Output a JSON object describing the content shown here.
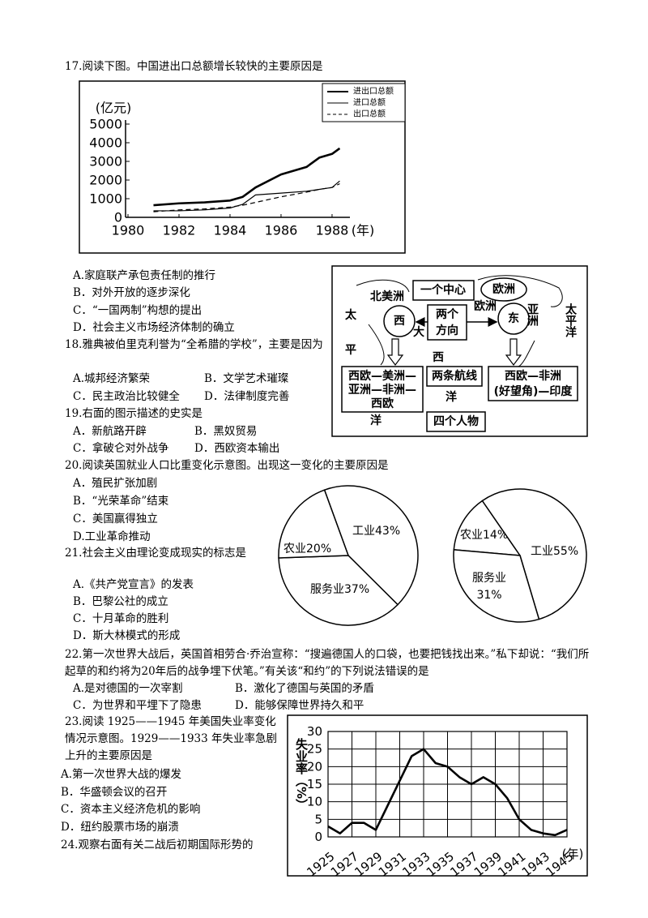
{
  "questions": [
    {
      "stem": "17.阅读下图。中国进出口总额增长较快的主要原因是",
      "options": [
        "A.家庭联产承包责任制的推行",
        "B．对外开放的逐步深化",
        "C．“一国两制”构想的提出",
        "D．社会主义市场经济体制的确立"
      ]
    },
    {
      "stem": "18.雅典被伯里克利誉为“全希腊的学校”，主要是因为",
      "options": [
        "A.城邦经济繁荣",
        "B．文学艺术璀璨",
        "C．民主政治比较健全",
        "D．法律制度完善"
      ]
    },
    {
      "stem": "19.右面的图示描述的史实是",
      "options": [
        "A．新航路开辟",
        "B．黑奴贸易",
        "C．拿破仑对外战争",
        "D．西欧资本输出"
      ]
    },
    {
      "stem": "20.阅读英国就业人口比重变化示意图。出现这一变化的主要原因是",
      "options": [
        "A．殖民扩张加剧",
        "B．“光荣革命”结束",
        "C．美国赢得独立",
        "D.工业革命推动"
      ]
    },
    {
      "stem": "21.社会主义由理论变成现实的标志是",
      "options": [
        "A.《共产党宣言》的发表",
        "B．巴黎公社的成立",
        "C．十月革命的胜利",
        "D．斯大林模式的形成"
      ]
    },
    {
      "stem": "22.第一次世界大战后，英国首相劳合·乔治宣称：“搜遍德国人的口袋，也要把钱找出来。”私下却说：“我们所起草的和约将为20年后的战争埋下伏笔。”有关该“和约”的下列说法错误的是",
      "options": [
        "A.是对德国的一次宰割",
        "B．激化了德国与英国的矛盾",
        "C．为世界和平埋下了隐患",
        "D．能够保障世界持久和平"
      ]
    },
    {
      "stem": "23.阅读 1925——1945 年美国失业率变化情况示意图。1929——1933 年失业率急剧上升的主要原因是",
      "options": [
        "A.第一次世界大战的爆发",
        "B．华盛顿会议的召开",
        "C．资本主义经济危机的影响",
        "D．纽约股票市场的崩溃"
      ]
    },
    {
      "stem": "24.观察右面有关二战后初期国际形势的"
    }
  ],
  "diagram": {
    "north_america": "北美洲",
    "center": "一个中心",
    "europe": "欧洲",
    "pacific_left": [
      "太",
      "平",
      "洋"
    ],
    "west": "西",
    "atlantic": [
      "大",
      "西",
      "洋"
    ],
    "directions": [
      "两个",
      "方向"
    ],
    "europe_label": "欧洲",
    "east": "东",
    "asia": "亚洲",
    "pacific_right": "太平洋",
    "route_west": [
      "西欧—美洲—",
      "亚洲—非洲—",
      "西欧"
    ],
    "routes": "两条航线",
    "route_east": [
      "西欧—非洲",
      "(好望角)—印度"
    ],
    "people": "四个人物"
  },
  "chart_data": [
    {
      "type": "line",
      "y_label": "(亿元)",
      "x_label": "(年)",
      "x": [
        1981,
        1982,
        1983,
        1984,
        1984.5,
        1985,
        1986,
        1987,
        1987.5,
        1988,
        1988.3
      ],
      "series": [
        {
          "name": "进出口总额",
          "color": "#000000",
          "style": "bold",
          "values": [
            650,
            750,
            800,
            900,
            1100,
            1600,
            2300,
            2700,
            3200,
            3400,
            3700
          ]
        },
        {
          "name": "进口总额",
          "color": "#000000",
          "style": "solid",
          "values": [
            350,
            350,
            400,
            500,
            700,
            1200,
            1300,
            1400,
            1500,
            1600,
            1950
          ]
        },
        {
          "name": "出口总额",
          "color": "#000000",
          "style": "dashed",
          "values": [
            300,
            400,
            450,
            550,
            650,
            800,
            1100,
            1350,
            1500,
            1600,
            1800
          ]
        }
      ],
      "xlim": [
        1980,
        1988.7
      ],
      "xticks": [
        1980,
        1982,
        1984,
        1986,
        1988
      ],
      "ylim": [
        0,
        5000
      ],
      "yticks": [
        0,
        1000,
        2000,
        3000,
        4000,
        5000
      ]
    },
    {
      "type": "pie",
      "categories": [
        "工业",
        "服务业",
        "农业"
      ],
      "values": [
        43,
        37,
        20
      ],
      "value_labels": [
        "43%",
        "37%",
        "20%"
      ]
    },
    {
      "type": "pie",
      "categories": [
        "农业",
        "工业",
        "服务业"
      ],
      "values": [
        14,
        55,
        31
      ],
      "value_labels": [
        "14%",
        "55%",
        "31%"
      ]
    },
    {
      "type": "line",
      "y_label": "失业率（%）",
      "x_label": "(年)",
      "x": [
        1925,
        1926,
        1927,
        1928,
        1929,
        1930,
        1931,
        1932,
        1933,
        1934,
        1935,
        1936,
        1937,
        1938,
        1939,
        1940,
        1941,
        1942,
        1943,
        1944,
        1945
      ],
      "values": [
        3,
        1,
        4,
        4,
        2,
        9,
        16,
        23,
        25,
        21,
        20,
        17,
        15,
        17,
        15,
        11,
        5,
        2,
        1,
        0.5,
        2
      ],
      "xlim": [
        1925,
        1945
      ],
      "xticks": [
        1925,
        1927,
        1929,
        1931,
        1933,
        1935,
        1937,
        1939,
        1941,
        1943,
        1945
      ],
      "ylim": [
        0,
        30
      ],
      "yticks": [
        0,
        5,
        10,
        15,
        20,
        25,
        30
      ],
      "grid": true
    }
  ]
}
